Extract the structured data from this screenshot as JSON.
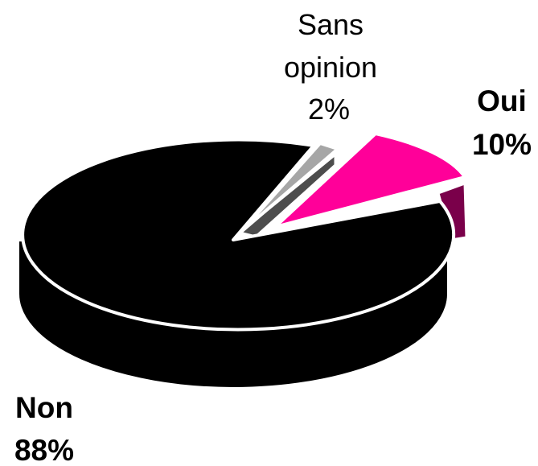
{
  "chart_data": {
    "type": "pie",
    "style": "3d-exploded",
    "title": "",
    "legend": "none",
    "slices": [
      {
        "label": "Non",
        "value": 88,
        "value_label": "88%",
        "color": "#000000",
        "side_color": "#000000"
      },
      {
        "label": "Sans opinion",
        "label_lines": [
          "Sans",
          "opinion"
        ],
        "value": 2,
        "value_label": "2%",
        "color": "#a6a6a6",
        "side_color": "#4d4d4d"
      },
      {
        "label": "Oui",
        "value": 10,
        "value_label": "10%",
        "color": "#ff0099",
        "side_color": "#7a004a"
      }
    ]
  }
}
